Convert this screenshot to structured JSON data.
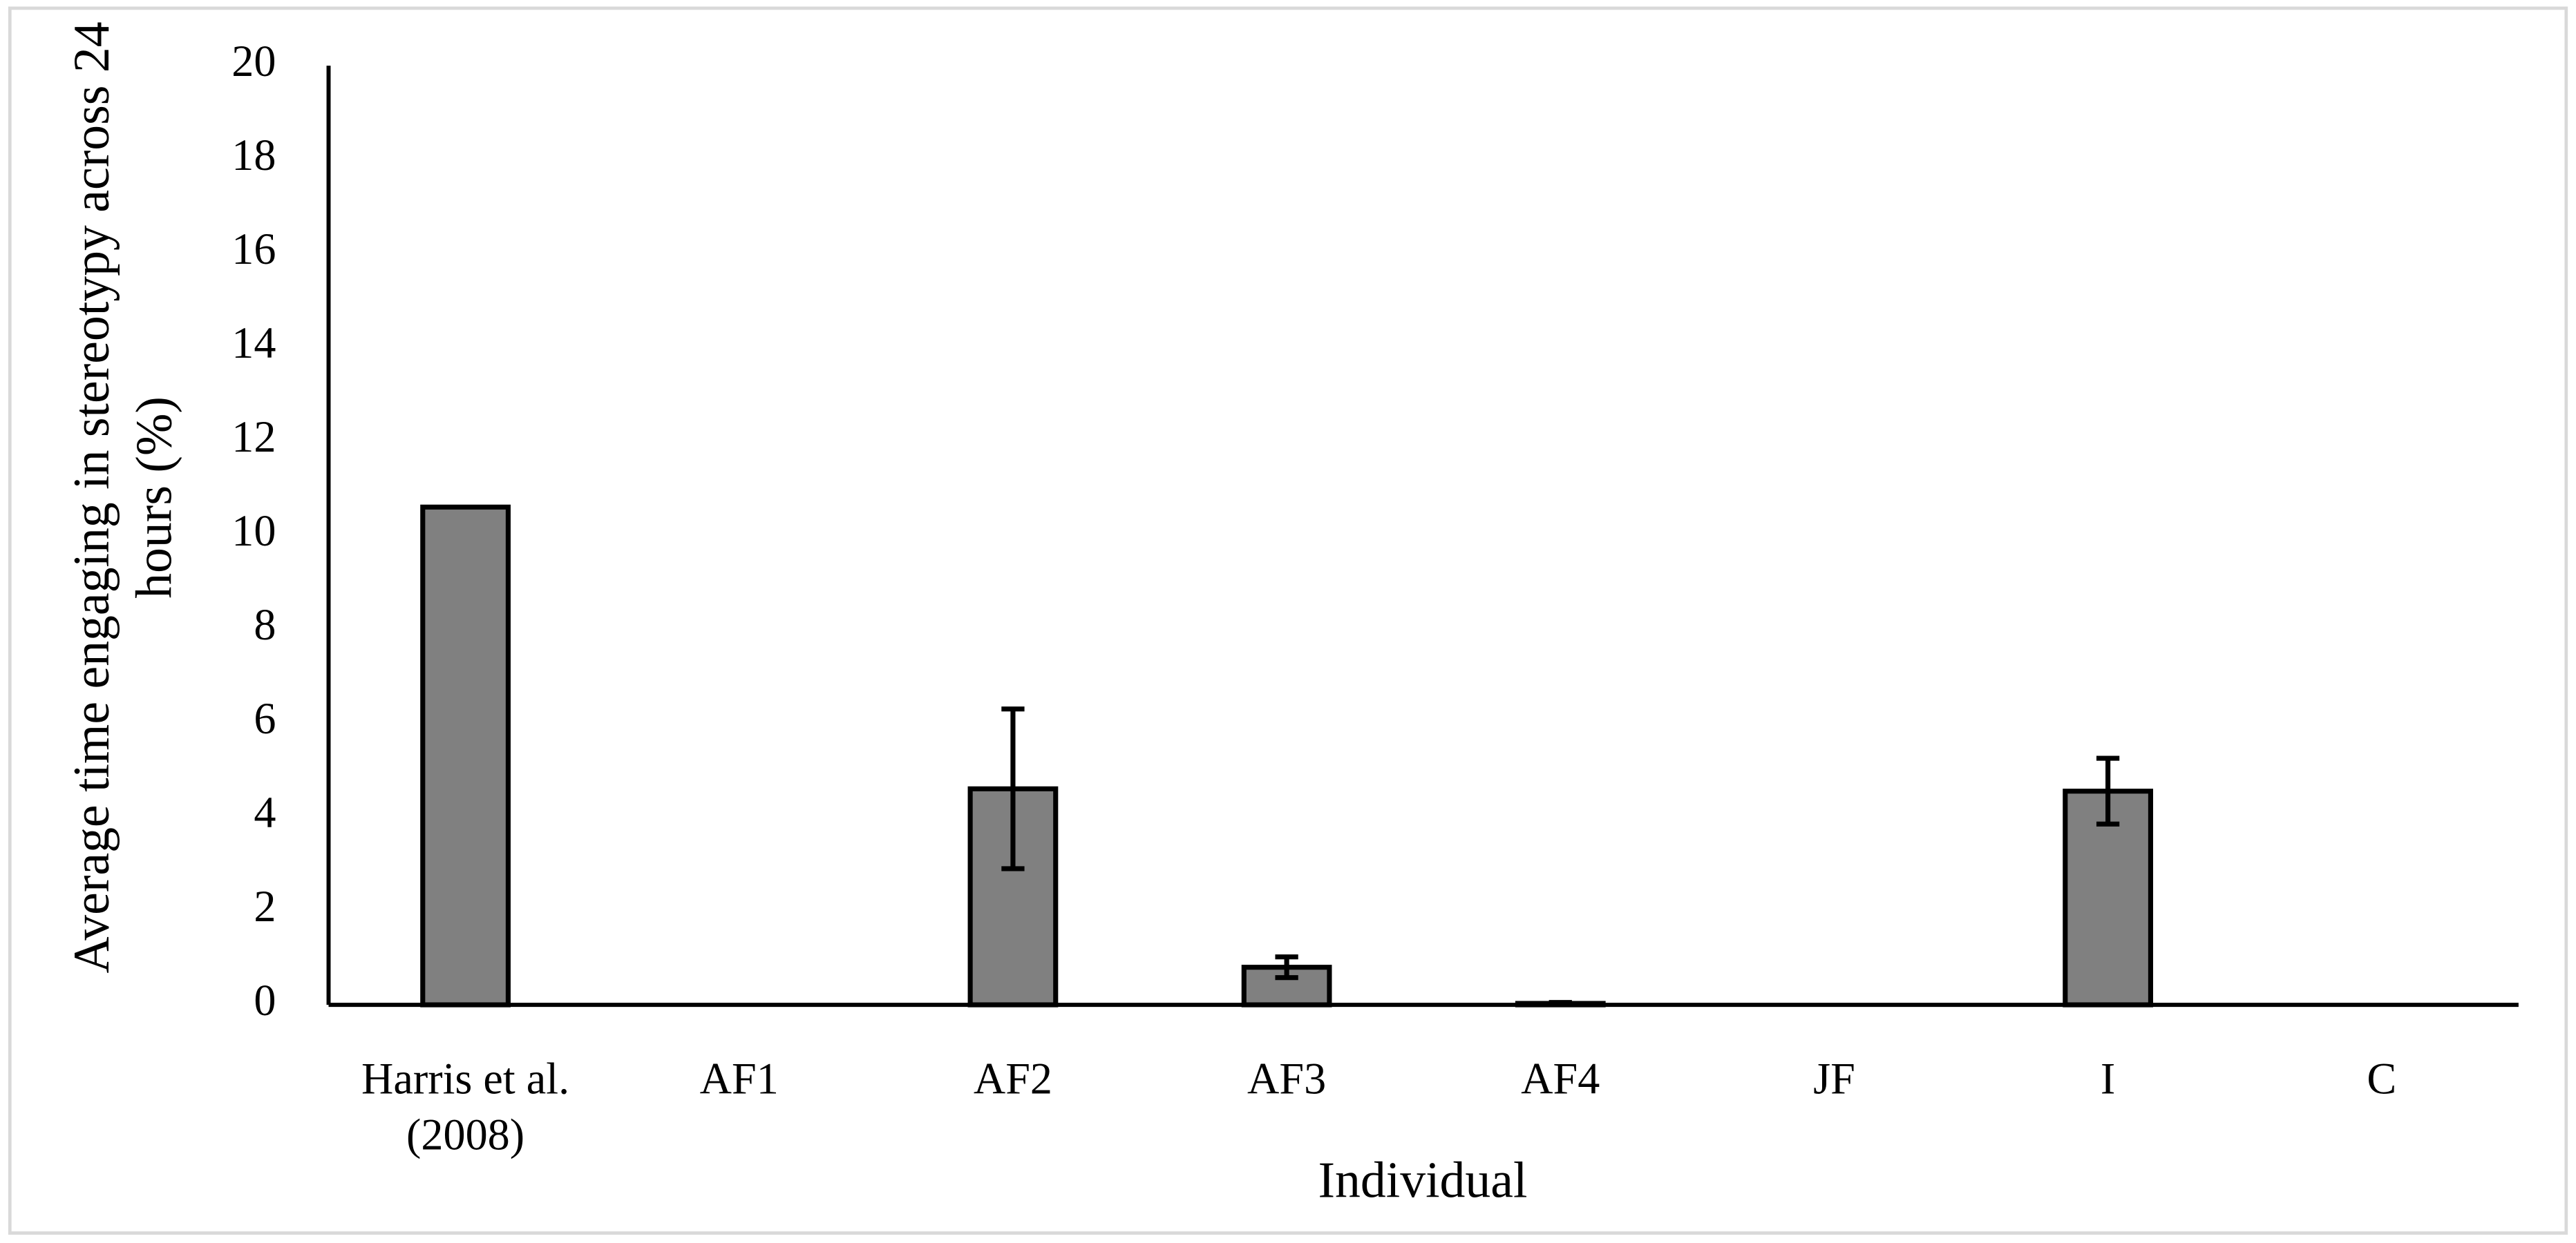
{
  "chart_data": {
    "type": "bar",
    "x_label": "Individual",
    "y_label": "Average time engaging in stereotypy across 24 hours (%)",
    "categories": [
      "Harris et al. (2008)",
      "AF1",
      "AF2",
      "AF3",
      "AF4",
      "JF",
      "I",
      "C"
    ],
    "values": [
      10.6,
      0,
      4.6,
      0.8,
      0.03,
      0,
      4.55,
      0
    ],
    "errors": [
      null,
      null,
      1.7,
      0.22,
      0.02,
      null,
      0.7,
      null
    ],
    "color": "#808080",
    "ylim": [
      0,
      20
    ],
    "yticks": [
      0,
      2,
      4,
      6,
      8,
      10,
      12,
      14,
      16,
      18,
      20
    ],
    "grid": false
  }
}
